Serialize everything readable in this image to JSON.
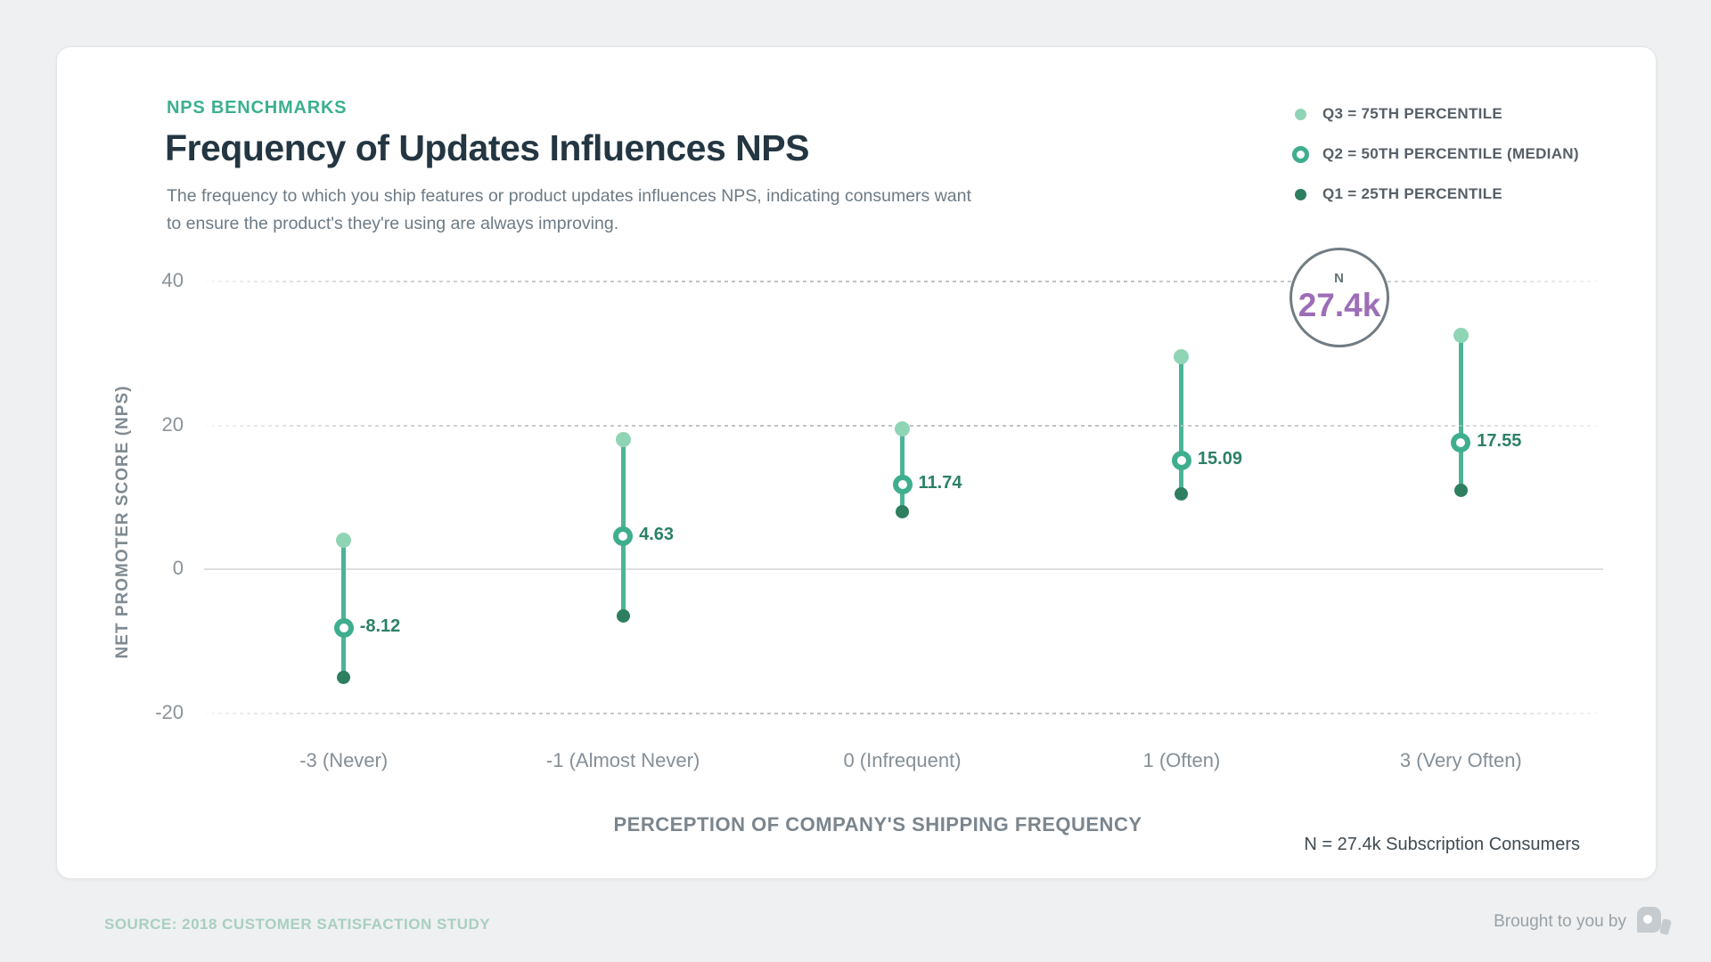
{
  "page": {
    "source_text": "SOURCE: 2018 CUSTOMER SATISFACTION STUDY",
    "brought_by": "Brought to you by"
  },
  "header": {
    "eyebrow": "NPS BENCHMARKS",
    "title": "Frequency of Updates Influences NPS",
    "subtitle_line1": "The frequency to which you ship features or product updates influences NPS, indicating consumers want",
    "subtitle_line2": "to ensure the product's they're using are always improving."
  },
  "legend": {
    "items": [
      {
        "label": "Q3 = 75TH PERCENTILE",
        "marker": "light-green-dot"
      },
      {
        "label": "Q2 = 50TH PERCENTILE (MEDIAN)",
        "marker": "teal-ring"
      },
      {
        "label": "Q1 = 25TH PERCENTILE",
        "marker": "dark-green-dot"
      }
    ]
  },
  "annotation": {
    "label": "N",
    "value": "27.4k"
  },
  "note": "N = 27.4k Subscription Consumers",
  "chart_data": {
    "type": "scatter",
    "subtype": "dot-range-plot",
    "title": "Frequency of Updates Influences NPS",
    "xlabel": "PERCEPTION OF COMPANY'S SHIPPING FREQUENCY",
    "ylabel": "NET PROMOTER SCORE (NPS)",
    "categories": [
      "-3 (Never)",
      "-1 (Almost Never)",
      "0 (Infrequent)",
      "1 (Often)",
      "3 (Very Often)"
    ],
    "series": [
      {
        "name": "Q3 = 75TH PERCENTILE",
        "values": [
          4,
          18,
          19.5,
          29.5,
          32.5
        ]
      },
      {
        "name": "Q2 = 50TH PERCENTILE (MEDIAN)",
        "values": [
          -8.12,
          4.63,
          11.74,
          15.09,
          17.55
        ]
      },
      {
        "name": "Q1 = 25TH PERCENTILE",
        "values": [
          -15,
          -6.5,
          8,
          10.5,
          11
        ]
      }
    ],
    "q2_value_labels": [
      "-8.12",
      "4.63",
      "11.74",
      "15.09",
      "17.55"
    ],
    "yticks": [
      40,
      20,
      0,
      -20
    ],
    "ylim": [
      -24,
      44
    ],
    "grid": "horizontal dotted at 40/20/-20, solid at 0",
    "legend_position": "top-right",
    "sample_size": "27.4k"
  },
  "colors": {
    "accent_teal": "#3caf90",
    "q3_light_green": "#90d4b6",
    "q2_teal_ring": "#3fae8f",
    "q1_dark_green": "#2e7e60",
    "stem_teal": "#4cb496",
    "value_label_green": "#2c8068",
    "sample_purple": "#9d6db6",
    "title_navy": "#233642",
    "page_background": "#eff0f1",
    "source_pale_green": "#a8cfc0"
  }
}
